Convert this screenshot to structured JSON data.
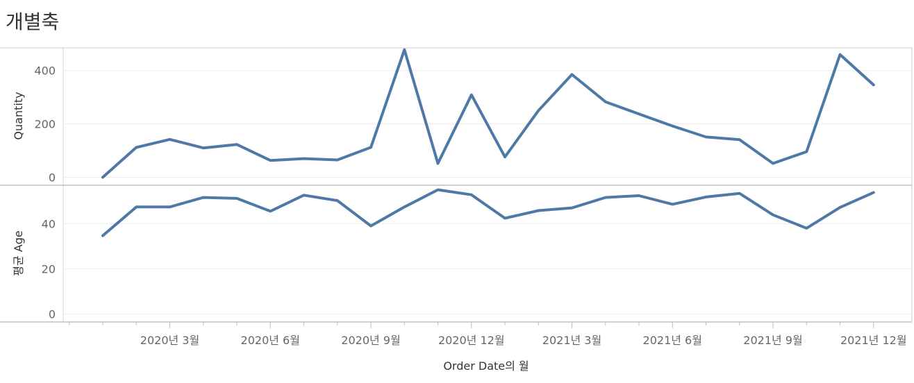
{
  "title": "개별축",
  "chart_data": {
    "type": "line",
    "title": "개별축",
    "xlabel": "Order Date의 월",
    "x_tick_labels": [
      "2020년 3월",
      "2020년 6월",
      "2020년 9월",
      "2020년 12월",
      "2021년 3월",
      "2021년 6월",
      "2021년 9월",
      "2021년 12월"
    ],
    "x": [
      "2020-01",
      "2020-02",
      "2020-03",
      "2020-04",
      "2020-05",
      "2020-06",
      "2020-07",
      "2020-08",
      "2020-09",
      "2020-10",
      "2020-11",
      "2020-12",
      "2021-01",
      "2021-02",
      "2021-03",
      "2021-04",
      "2021-05",
      "2021-06",
      "2021-07",
      "2021-08",
      "2021-09",
      "2021-10",
      "2021-11",
      "2021-12"
    ],
    "color": "#4e79a7",
    "grid": true,
    "panels": [
      {
        "ylabel": "Quantity",
        "y_ticks": [
          0,
          200,
          400
        ],
        "ylim": [
          -30,
          485
        ],
        "values": [
          0,
          112,
          142,
          110,
          123,
          63,
          70,
          65,
          112,
          478,
          52,
          309,
          76,
          250,
          385,
          283,
          237,
          192,
          151,
          141,
          52,
          96,
          460,
          346
        ]
      },
      {
        "ylabel": "평균 Age",
        "y_ticks": [
          0,
          20,
          40
        ],
        "ylim": [
          -3.5,
          57
        ],
        "values": [
          34.7,
          47.4,
          47.4,
          51.6,
          51.2,
          45.5,
          52.6,
          50.2,
          39.0,
          47.4,
          55.0,
          52.8,
          42.4,
          45.8,
          47.0,
          51.6,
          52.4,
          48.6,
          51.8,
          53.4,
          43.9,
          38.0,
          47.2,
          53.8
        ]
      }
    ]
  }
}
